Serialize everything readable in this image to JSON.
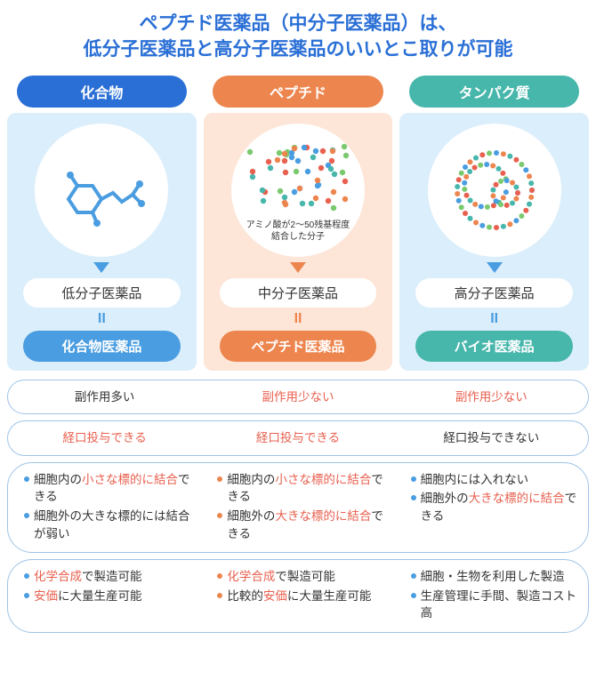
{
  "colors": {
    "blue_main": "#2a6fd6",
    "blue_light": "#dbeefb",
    "blue_accent": "#4a9de0",
    "orange_main": "#ed854e",
    "orange_light": "#fde6d8",
    "green_main": "#47b6ab",
    "highlight_red": "#e8604f",
    "text_dark": "#333333",
    "border_blue": "#9fc4e8"
  },
  "title": {
    "line1": "ペプチド医薬品（中分子医薬品）は、",
    "line2": "低分子医薬品と高分子医薬品のいいとこ取りが可能",
    "color": "#2a6fd6",
    "fontsize": 21
  },
  "columns": [
    {
      "header": "化合物",
      "header_bg": "#2a6fd6",
      "body_bg": "#dbeefb",
      "arrow_color": "#4a9de0",
      "illus_caption": "",
      "category": "低分子医薬品",
      "equals_color": "#4a9de0",
      "drug": "化合物医薬品",
      "drug_bg": "#4a9de0",
      "bullet_color": "#4a9de0"
    },
    {
      "header": "ペプチド",
      "header_bg": "#ed854e",
      "body_bg": "#fde6d8",
      "arrow_color": "#ed854e",
      "illus_caption": "アミノ酸が2〜50残基程度\n結合した分子",
      "category": "中分子医薬品",
      "equals_color": "#ed854e",
      "drug": "ペプチド医薬品",
      "drug_bg": "#ed854e",
      "bullet_color": "#ed854e"
    },
    {
      "header": "タンパク質",
      "header_bg": "#47b6ab",
      "body_bg": "#dbeefb",
      "arrow_color": "#4a9de0",
      "illus_caption": "",
      "category": "高分子医薬品",
      "equals_color": "#4a9de0",
      "drug": "バイオ医薬品",
      "drug_bg": "#47b6ab",
      "bullet_color": "#4a9de0"
    }
  ],
  "features": [
    {
      "type": "single",
      "cells": [
        [
          {
            "t": "副作用多い",
            "c": "#333333"
          }
        ],
        [
          {
            "t": "副作用少ない",
            "c": "#e8604f"
          }
        ],
        [
          {
            "t": "副作用少ない",
            "c": "#e8604f"
          }
        ]
      ]
    },
    {
      "type": "single",
      "cells": [
        [
          {
            "t": "経口投与",
            "c": "#e8604f"
          },
          {
            "t": "できる",
            "c": "#e8604f"
          }
        ],
        [
          {
            "t": "経口投与",
            "c": "#e8604f"
          },
          {
            "t": "できる",
            "c": "#e8604f"
          }
        ],
        [
          {
            "t": "経口投与",
            "c": "#333333"
          },
          {
            "t": "できない",
            "c": "#333333"
          }
        ]
      ]
    },
    {
      "type": "bullets",
      "cells": [
        [
          [
            {
              "t": "細胞内の",
              "c": "#333333"
            },
            {
              "t": "小さな標的に結合",
              "c": "#e8604f"
            },
            {
              "t": "できる",
              "c": "#333333"
            }
          ],
          [
            {
              "t": "細胞外の大きな標的には結合が弱い",
              "c": "#333333"
            }
          ]
        ],
        [
          [
            {
              "t": "細胞内の",
              "c": "#333333"
            },
            {
              "t": "小さな標的に結合",
              "c": "#e8604f"
            },
            {
              "t": "できる",
              "c": "#333333"
            }
          ],
          [
            {
              "t": "細胞外の",
              "c": "#333333"
            },
            {
              "t": "大きな標的に結合",
              "c": "#e8604f"
            },
            {
              "t": "できる",
              "c": "#333333"
            }
          ]
        ],
        [
          [
            {
              "t": "細胞内には入れない",
              "c": "#333333"
            }
          ],
          [
            {
              "t": "細胞外の",
              "c": "#333333"
            },
            {
              "t": "大きな標的に結合",
              "c": "#e8604f"
            },
            {
              "t": "できる",
              "c": "#333333"
            }
          ]
        ]
      ]
    },
    {
      "type": "bullets",
      "cells": [
        [
          [
            {
              "t": "化学合成",
              "c": "#e8604f"
            },
            {
              "t": "で製造可能",
              "c": "#333333"
            }
          ],
          [
            {
              "t": "安価",
              "c": "#e8604f"
            },
            {
              "t": "に大量生産可能",
              "c": "#333333"
            }
          ]
        ],
        [
          [
            {
              "t": "化学合成",
              "c": "#e8604f"
            },
            {
              "t": "で製造可能",
              "c": "#333333"
            }
          ],
          [
            {
              "t": "比較的",
              "c": "#333333"
            },
            {
              "t": "安価",
              "c": "#e8604f"
            },
            {
              "t": "に大量生産可能",
              "c": "#333333"
            }
          ]
        ],
        [
          [
            {
              "t": "細胞・生物を利用した製造",
              "c": "#333333"
            }
          ],
          [
            {
              "t": "生産管理に手間、製造コスト高",
              "c": "#333333"
            }
          ]
        ]
      ]
    }
  ]
}
